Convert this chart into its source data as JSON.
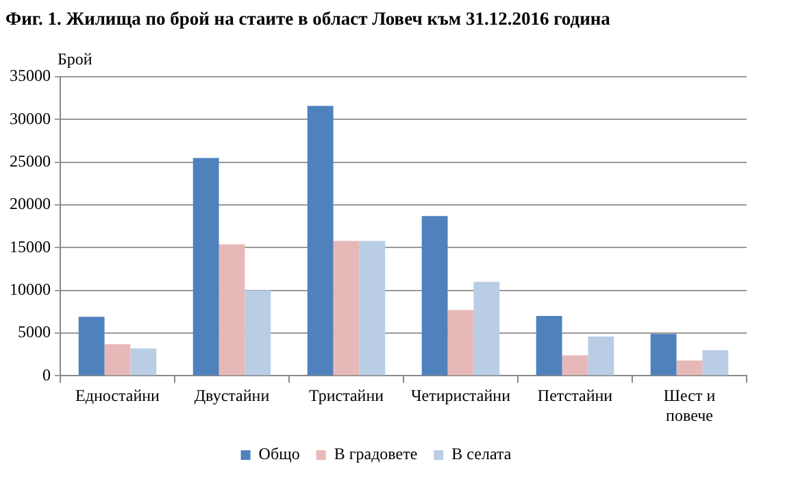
{
  "chart_data": {
    "type": "bar",
    "title": "Фиг. 1. Жилища по брой на стаите в област Ловеч към 31.12.2016 година",
    "ylabel": "Брой",
    "categories": [
      "Едностайни",
      "Двустайни",
      "Тристайни",
      "Четиристайни",
      "Петстайни",
      "Шест и повече"
    ],
    "series": [
      {
        "name": "Общо",
        "color": "#4f81bd",
        "values": [
          6900,
          25500,
          31600,
          18700,
          7000,
          4900
        ]
      },
      {
        "name": "В градовете",
        "color": "#e6b9b8",
        "values": [
          3700,
          15400,
          15800,
          7700,
          2400,
          1800
        ]
      },
      {
        "name": "В селата",
        "color": "#b9cde5",
        "values": [
          3200,
          10000,
          15800,
          11000,
          4600,
          3000
        ]
      }
    ],
    "ylim": [
      0,
      35000
    ],
    "yticks": [
      0,
      5000,
      10000,
      15000,
      20000,
      25000,
      30000,
      35000
    ],
    "grid": "y",
    "legend": "bottom"
  }
}
